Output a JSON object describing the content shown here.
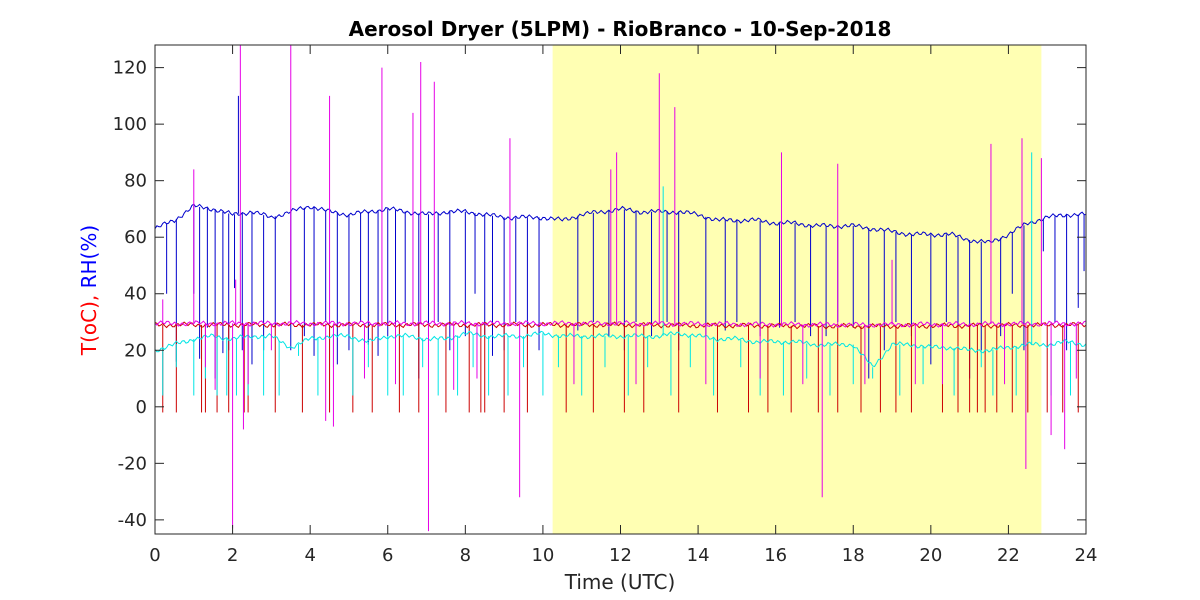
{
  "chart_data": {
    "type": "line",
    "title": "Aerosol Dryer (5LPM) - RioBranco - 10-Sep-2018",
    "xlabel": "Time (UTC)",
    "ylabel_parts": [
      {
        "text": "T(oC), ",
        "color": "#ff0000"
      },
      {
        "text": "RH(%)",
        "color": "#0000ff"
      }
    ],
    "xlim": [
      0,
      24
    ],
    "ylim": [
      -45,
      128
    ],
    "xticks": [
      0,
      2,
      4,
      6,
      8,
      10,
      12,
      14,
      16,
      18,
      20,
      22,
      24
    ],
    "yticks": [
      -40,
      -20,
      0,
      20,
      40,
      60,
      80,
      100,
      120
    ],
    "highlight": {
      "x_start": 10.25,
      "x_end": 22.85,
      "color": "#ffffb3"
    },
    "grid": false,
    "legend": "none",
    "series": [
      {
        "color": "#0000cc",
        "x": [
          0,
          0.5,
          1,
          1.5,
          2,
          2.5,
          3,
          3.5,
          4,
          4.5,
          5,
          5.5,
          6,
          6.5,
          7,
          7.5,
          8,
          8.5,
          9,
          9.5,
          10,
          10.5,
          11,
          11.5,
          12,
          12.5,
          13,
          13.5,
          14,
          14.5,
          15,
          15.5,
          16,
          16.5,
          17,
          17.5,
          18,
          18.5,
          19,
          19.5,
          20,
          20.5,
          21,
          21.5,
          22,
          22.5,
          23,
          23.5,
          24
        ],
        "values": [
          63,
          66,
          71,
          70,
          68,
          69,
          67,
          69,
          71,
          69,
          68,
          69,
          70,
          69,
          68,
          69,
          69,
          68,
          67,
          67,
          67,
          66,
          68,
          69,
          70,
          69,
          69,
          69,
          68,
          66,
          66,
          66,
          65,
          65,
          64,
          64,
          64,
          63,
          62,
          61,
          61,
          61,
          59,
          58,
          61,
          65,
          67,
          68,
          68
        ],
        "spikes": [
          [
            0.3,
            40
          ],
          [
            0.55,
            16
          ],
          [
            1.0,
            40
          ],
          [
            1.15,
            17
          ],
          [
            1.35,
            28
          ],
          [
            1.55,
            10
          ],
          [
            1.75,
            19
          ],
          [
            1.9,
            20
          ],
          [
            2.05,
            42
          ],
          [
            2.15,
            110
          ],
          [
            2.25,
            20
          ],
          [
            2.5,
            15
          ],
          [
            2.8,
            20
          ],
          [
            3.1,
            28
          ],
          [
            3.5,
            20
          ],
          [
            3.85,
            25
          ],
          [
            4.1,
            18
          ],
          [
            4.4,
            30
          ],
          [
            4.7,
            15
          ],
          [
            5.0,
            20
          ],
          [
            5.3,
            30
          ],
          [
            5.5,
            22
          ],
          [
            5.75,
            18
          ],
          [
            6.0,
            25
          ],
          [
            6.2,
            20
          ],
          [
            6.45,
            30
          ],
          [
            6.8,
            10
          ],
          [
            7.05,
            25
          ],
          [
            7.3,
            30
          ],
          [
            7.6,
            20
          ],
          [
            8.0,
            25
          ],
          [
            8.25,
            40
          ],
          [
            8.5,
            25
          ],
          [
            8.7,
            18
          ],
          [
            9.0,
            20
          ],
          [
            9.3,
            30
          ],
          [
            9.6,
            25
          ],
          [
            9.9,
            20
          ],
          [
            10.9,
            27
          ],
          [
            11.3,
            30
          ],
          [
            11.7,
            25
          ],
          [
            12.1,
            20
          ],
          [
            12.4,
            30
          ],
          [
            12.8,
            25
          ],
          [
            13.2,
            30
          ],
          [
            13.5,
            20
          ],
          [
            14.2,
            25
          ],
          [
            14.7,
            27
          ],
          [
            15.0,
            30
          ],
          [
            15.6,
            25
          ],
          [
            16.1,
            28
          ],
          [
            16.5,
            30
          ],
          [
            16.9,
            25
          ],
          [
            17.3,
            25
          ],
          [
            17.6,
            30
          ],
          [
            18.0,
            28
          ],
          [
            18.4,
            10
          ],
          [
            18.8,
            20
          ],
          [
            19.1,
            30
          ],
          [
            19.5,
            25
          ],
          [
            20.0,
            15
          ],
          [
            20.4,
            30
          ],
          [
            20.7,
            20
          ],
          [
            21.0,
            10
          ],
          [
            21.3,
            20
          ],
          [
            21.8,
            25
          ],
          [
            22.1,
            40
          ],
          [
            22.4,
            20
          ],
          [
            22.9,
            55
          ],
          [
            23.2,
            30
          ],
          [
            23.5,
            20
          ],
          [
            23.8,
            35
          ],
          [
            23.95,
            48
          ]
        ]
      },
      {
        "color": "#cc0000",
        "x": [
          0,
          6,
          12,
          18,
          24
        ],
        "values": [
          29,
          29,
          29,
          28.5,
          29
        ],
        "spikes": [
          [
            0.2,
            -2
          ],
          [
            0.55,
            -2
          ],
          [
            1.2,
            -2
          ],
          [
            1.3,
            -2
          ],
          [
            1.6,
            -2
          ],
          [
            1.9,
            -2
          ],
          [
            2.3,
            -2
          ],
          [
            2.4,
            -2
          ],
          [
            3.1,
            -2
          ],
          [
            3.8,
            -2
          ],
          [
            4.5,
            -2
          ],
          [
            5.1,
            -2
          ],
          [
            5.6,
            -2
          ],
          [
            6.3,
            -2
          ],
          [
            6.8,
            -2
          ],
          [
            7.5,
            -2
          ],
          [
            8.1,
            -2
          ],
          [
            8.4,
            -2
          ],
          [
            8.5,
            -2
          ],
          [
            9.0,
            -2
          ],
          [
            9.6,
            -2
          ],
          [
            10.6,
            -2
          ],
          [
            11.3,
            -2
          ],
          [
            12.1,
            -2
          ],
          [
            12.6,
            -2
          ],
          [
            13.5,
            -2
          ],
          [
            14.5,
            -2
          ],
          [
            15.3,
            -2
          ],
          [
            15.8,
            -2
          ],
          [
            16.4,
            -2
          ],
          [
            17.1,
            -2
          ],
          [
            17.6,
            -2
          ],
          [
            18.2,
            -2
          ],
          [
            18.7,
            -2
          ],
          [
            19.1,
            -2
          ],
          [
            19.5,
            -2
          ],
          [
            20.3,
            -2
          ],
          [
            20.7,
            -2
          ],
          [
            21.0,
            -2
          ],
          [
            21.2,
            -2
          ],
          [
            21.4,
            -2
          ],
          [
            21.7,
            -2
          ],
          [
            22.1,
            -2
          ],
          [
            22.5,
            -2
          ],
          [
            23.0,
            -2
          ],
          [
            23.4,
            -2
          ],
          [
            23.8,
            -2
          ]
        ]
      },
      {
        "color": "#00e5e5",
        "x": [
          0,
          0.5,
          1,
          1.5,
          2,
          2.5,
          3,
          3.5,
          4,
          4.5,
          5,
          5.5,
          6,
          6.5,
          7,
          7.5,
          8,
          8.5,
          9,
          9.5,
          10,
          10.5,
          11,
          11.5,
          12,
          12.5,
          13,
          13.5,
          14,
          14.5,
          15,
          15.5,
          16,
          16.5,
          17,
          17.5,
          18,
          18.5,
          19,
          19.5,
          20,
          20.5,
          21,
          21.5,
          22,
          22.5,
          23,
          23.5,
          24
        ],
        "values": [
          20,
          22,
          24,
          25,
          24,
          25,
          25,
          21,
          24,
          25,
          25,
          23,
          25,
          25,
          24,
          24,
          26,
          25,
          25,
          25,
          26,
          25,
          25,
          25,
          25,
          25,
          25,
          26,
          25,
          24,
          24,
          23,
          23,
          23,
          22,
          22,
          22,
          14,
          22,
          22,
          21,
          21,
          20,
          20,
          21,
          22,
          22,
          23,
          22
        ],
        "spikes": [
          [
            0.2,
            4
          ],
          [
            0.55,
            14
          ],
          [
            1.0,
            4
          ],
          [
            1.3,
            10
          ],
          [
            1.6,
            4
          ],
          [
            1.85,
            4
          ],
          [
            2.1,
            4
          ],
          [
            2.4,
            4
          ],
          [
            2.8,
            4
          ],
          [
            3.2,
            4
          ],
          [
            3.7,
            18
          ],
          [
            4.2,
            4
          ],
          [
            4.6,
            14
          ],
          [
            5.1,
            4
          ],
          [
            5.5,
            14
          ],
          [
            6.0,
            4
          ],
          [
            6.4,
            4
          ],
          [
            6.9,
            14
          ],
          [
            7.3,
            4
          ],
          [
            7.8,
            4
          ],
          [
            8.2,
            14
          ],
          [
            8.6,
            4
          ],
          [
            9.1,
            4
          ],
          [
            9.5,
            14
          ],
          [
            10.0,
            4
          ],
          [
            10.4,
            14
          ],
          [
            11.0,
            4
          ],
          [
            11.6,
            14
          ],
          [
            12.2,
            4
          ],
          [
            12.7,
            14
          ],
          [
            13.1,
            78
          ],
          [
            13.3,
            4
          ],
          [
            13.8,
            14
          ],
          [
            14.4,
            4
          ],
          [
            15.1,
            14
          ],
          [
            15.6,
            4
          ],
          [
            16.2,
            4
          ],
          [
            16.8,
            10
          ],
          [
            17.4,
            4
          ],
          [
            18.0,
            8
          ],
          [
            18.5,
            10
          ],
          [
            19.2,
            4
          ],
          [
            19.8,
            8
          ],
          [
            20.6,
            4
          ],
          [
            21.3,
            14
          ],
          [
            21.6,
            4
          ],
          [
            22.2,
            4
          ],
          [
            22.6,
            90
          ],
          [
            23.1,
            4
          ],
          [
            23.6,
            4
          ]
        ]
      },
      {
        "color": "#e600e6",
        "x": [
          0,
          6,
          12,
          18,
          24
        ],
        "values": [
          29.5,
          29.5,
          29.5,
          29,
          29.5
        ],
        "spikes": [
          [
            0.2,
            38
          ],
          [
            1.0,
            84
          ],
          [
            1.3,
            14
          ],
          [
            1.55,
            6
          ],
          [
            2.0,
            -43
          ],
          [
            2.08,
            45
          ],
          [
            2.2,
            128
          ],
          [
            2.28,
            -8
          ],
          [
            2.4,
            8
          ],
          [
            3.0,
            20
          ],
          [
            3.5,
            128
          ],
          [
            4.4,
            -5
          ],
          [
            4.5,
            110
          ],
          [
            4.6,
            -7
          ],
          [
            5.4,
            10
          ],
          [
            5.85,
            120
          ],
          [
            6.2,
            8
          ],
          [
            6.65,
            104
          ],
          [
            6.85,
            122
          ],
          [
            7.05,
            -44
          ],
          [
            7.2,
            115
          ],
          [
            7.7,
            6
          ],
          [
            8.3,
            10
          ],
          [
            9.15,
            95
          ],
          [
            9.4,
            -32
          ],
          [
            10.8,
            8
          ],
          [
            11.75,
            84
          ],
          [
            11.9,
            90
          ],
          [
            12.4,
            8
          ],
          [
            13.0,
            118
          ],
          [
            13.4,
            106
          ],
          [
            14.2,
            8
          ],
          [
            15.6,
            10
          ],
          [
            16.15,
            90
          ],
          [
            16.7,
            8
          ],
          [
            17.2,
            -32
          ],
          [
            17.6,
            86
          ],
          [
            18.3,
            8
          ],
          [
            19.0,
            52
          ],
          [
            19.6,
            8
          ],
          [
            20.3,
            8
          ],
          [
            21.55,
            93
          ],
          [
            21.9,
            8
          ],
          [
            22.35,
            95
          ],
          [
            22.45,
            -22
          ],
          [
            22.85,
            88
          ],
          [
            23.1,
            -10
          ],
          [
            23.45,
            -15
          ],
          [
            23.75,
            10
          ]
        ]
      }
    ]
  }
}
